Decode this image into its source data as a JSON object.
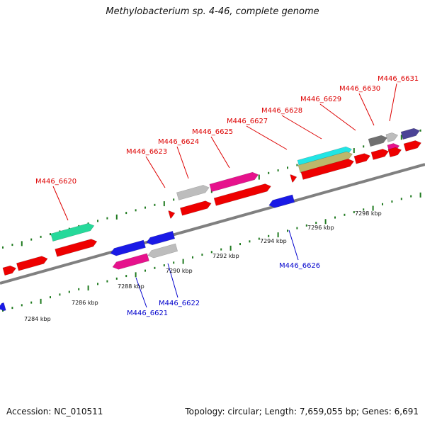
{
  "title": "Methylobacterium sp. 4-46, complete genome",
  "footer": {
    "accession": "Accession: NC_010511",
    "summary": "Topology: circular; Length: 7,659,055 bp; Genes: 6,691"
  },
  "scale": {
    "labels": [
      "7284 kbp",
      "7286 kbp",
      "7288 kbp",
      "7290 kbp",
      "7292 kbp",
      "7294 kbp",
      "7296 kbp",
      "7298 kbp"
    ]
  },
  "colors": {
    "backbone": "#808080",
    "tick": "#1f7a1f",
    "forward_label": "#dd0000",
    "reverse_label": "#0000cc",
    "red": "#ee0000",
    "blue": "#1a1ae6",
    "pink": "#e6128c",
    "gray": "#bdbdbd",
    "teal": "#26d99a",
    "cyan": "#22e5e5",
    "khaki": "#bdb76b",
    "darkgray": "#707070",
    "slate": "#4b4396"
  },
  "gene_labels": {
    "forward": [
      "M446_6620",
      "M446_6623",
      "M446_6624",
      "M446_6625",
      "M446_6627",
      "M446_6628",
      "M446_6629",
      "M446_6630",
      "M446_6631"
    ],
    "reverse": [
      "M446_6621",
      "M446_6622",
      "M446_6626"
    ]
  }
}
